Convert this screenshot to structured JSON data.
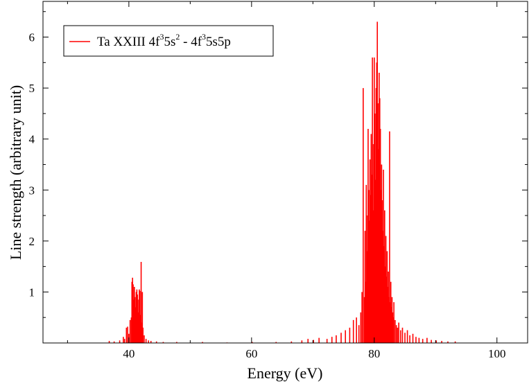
{
  "chart_data": {
    "type": "bar",
    "title": "",
    "xlabel": "Energy (eV)",
    "ylabel": "Line strength (arbitrary unit)",
    "xlim": [
      26,
      105
    ],
    "ylim": [
      0,
      6.7
    ],
    "xticks": [
      40,
      60,
      80,
      100
    ],
    "yticks": [
      1,
      2,
      3,
      4,
      5,
      6
    ],
    "grid": false,
    "legend_position": "top-left",
    "series": [
      {
        "name": "Ta XXIII 4f35s2 - 4f35s5p",
        "color": "#ff0000",
        "x": [
          36.8,
          37.6,
          38.5,
          39.1,
          39.3,
          39.6,
          39.8,
          40.0,
          40.2,
          40.4,
          40.5,
          40.6,
          40.7,
          40.8,
          40.9,
          41.0,
          41.1,
          41.2,
          41.3,
          41.4,
          41.5,
          41.6,
          41.7,
          41.8,
          41.9,
          42.0,
          42.1,
          42.2,
          42.3,
          42.5,
          42.8,
          43.2,
          43.6,
          44.5,
          45.6,
          47.8,
          52.0,
          56.0,
          60.1,
          64.0,
          66.5,
          68.2,
          69.2,
          70.1,
          71.0,
          72.3,
          73.1,
          73.8,
          74.6,
          75.3,
          76.0,
          76.6,
          77.1,
          77.5,
          77.8,
          78.0,
          78.2,
          78.4,
          78.5,
          78.6,
          78.7,
          78.8,
          78.9,
          79.0,
          79.1,
          79.2,
          79.3,
          79.4,
          79.5,
          79.6,
          79.7,
          79.8,
          79.9,
          80.0,
          80.1,
          80.2,
          80.3,
          80.4,
          80.5,
          80.6,
          80.7,
          80.8,
          80.9,
          81.0,
          81.1,
          81.2,
          81.3,
          81.4,
          81.5,
          81.6,
          81.7,
          81.8,
          81.9,
          82.0,
          82.1,
          82.2,
          82.3,
          82.4,
          82.5,
          82.6,
          82.7,
          82.8,
          82.9,
          83.0,
          83.1,
          83.2,
          83.4,
          83.6,
          83.8,
          84.0,
          84.3,
          84.6,
          85.0,
          85.4,
          85.8,
          86.3,
          86.8,
          87.3,
          87.9,
          88.6,
          89.3,
          90.1,
          91.0,
          92.0,
          93.2
        ],
        "values": [
          0.04,
          0.03,
          0.05,
          0.12,
          0.08,
          0.3,
          0.32,
          0.18,
          0.45,
          0.5,
          1.2,
          1.28,
          1.15,
          0.85,
          1.1,
          0.9,
          0.7,
          1.0,
          1.05,
          0.95,
          0.6,
          0.85,
          1.05,
          1.02,
          0.55,
          1.59,
          0.4,
          1.0,
          0.3,
          0.15,
          0.08,
          0.05,
          0.04,
          0.03,
          0.02,
          0.02,
          0.02,
          0.01,
          0.02,
          0.02,
          0.03,
          0.05,
          0.08,
          0.06,
          0.1,
          0.08,
          0.12,
          0.15,
          0.2,
          0.25,
          0.3,
          0.45,
          0.5,
          0.35,
          0.6,
          1.0,
          5.0,
          0.9,
          2.2,
          1.2,
          3.1,
          1.8,
          2.5,
          4.2,
          3.0,
          2.4,
          3.6,
          2.9,
          4.1,
          3.3,
          5.6,
          3.9,
          2.6,
          5.6,
          4.5,
          3.2,
          5.0,
          5.5,
          6.3,
          4.7,
          3.8,
          5.3,
          4.8,
          4.2,
          3.0,
          3.5,
          2.8,
          2.2,
          3.4,
          1.9,
          2.6,
          1.5,
          2.1,
          1.3,
          1.8,
          1.1,
          1.4,
          0.9,
          4.15,
          0.8,
          1.2,
          0.7,
          0.9,
          0.6,
          0.5,
          0.8,
          0.45,
          0.35,
          0.3,
          0.4,
          0.25,
          0.3,
          0.2,
          0.25,
          0.15,
          0.18,
          0.12,
          0.1,
          0.08,
          0.1,
          0.06,
          0.05,
          0.04,
          0.03,
          0.03
        ]
      }
    ]
  }
}
